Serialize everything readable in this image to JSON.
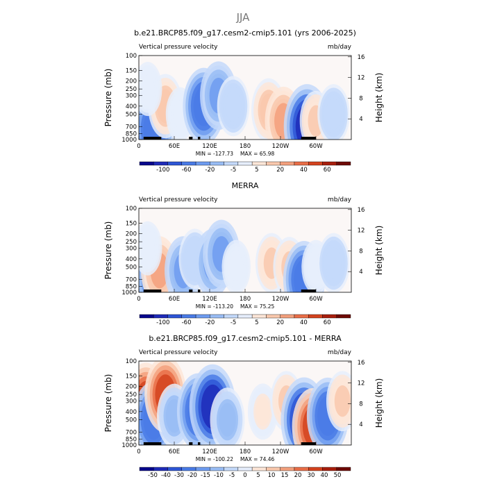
{
  "main_title": "JJA",
  "chart_data": [
    {
      "type": "heatmap",
      "title": "b.e21.BRCP85.f09_g17.cesm2-cmip5.101 (yrs 2006-2025)",
      "variable_label": "Vertical pressure velocity",
      "units": "mb/day",
      "ylabel": "Pressure (mb)",
      "ylabel_right": "Height (km)",
      "y_ticks": [
        "100",
        "150",
        "200",
        "250",
        "300",
        "400",
        "500",
        "700",
        "850",
        "1000"
      ],
      "y_right_ticks": [
        "16",
        "12",
        "8",
        "4"
      ],
      "x_ticks": [
        "0",
        "60E",
        "120E",
        "180",
        "120W",
        "60W"
      ],
      "min_label": "MIN = -127.73",
      "max_label": "MAX = 65.98",
      "colorbar_ticks": [
        "-100",
        "-60",
        "-20",
        "-5",
        "5",
        "20",
        "40",
        "60"
      ],
      "features": [
        {
          "lon": 25,
          "p": 750,
          "v": -60
        },
        {
          "lon": 45,
          "p": 400,
          "v": 30
        },
        {
          "lon": 70,
          "p": 500,
          "v": -5
        },
        {
          "lon": 110,
          "p": 400,
          "v": -60
        },
        {
          "lon": 135,
          "p": 300,
          "v": -40
        },
        {
          "lon": 160,
          "p": 400,
          "v": -20
        },
        {
          "lon": 220,
          "p": 450,
          "v": 30
        },
        {
          "lon": 245,
          "p": 600,
          "v": 40
        },
        {
          "lon": 285,
          "p": 700,
          "v": -80
        },
        {
          "lon": 300,
          "p": 600,
          "v": 20
        },
        {
          "lon": 330,
          "p": 500,
          "v": -20
        },
        {
          "lon": 15,
          "p": 250,
          "v": 5
        }
      ]
    },
    {
      "type": "heatmap",
      "title": "MERRA",
      "variable_label": "Vertical pressure velocity",
      "units": "mb/day",
      "ylabel": "Pressure (mb)",
      "ylabel_right": "Height (km)",
      "y_ticks": [
        "100",
        "150",
        "200",
        "250",
        "300",
        "400",
        "500",
        "700",
        "850",
        "1000"
      ],
      "y_right_ticks": [
        "16",
        "12",
        "8",
        "4"
      ],
      "x_ticks": [
        "0",
        "60E",
        "120E",
        "180",
        "120W",
        "60W"
      ],
      "min_label": "MIN = -113.20",
      "max_label": "MAX = 75.25",
      "colorbar_ticks": [
        "-100",
        "-60",
        "-20",
        "-5",
        "5",
        "20",
        "40",
        "60"
      ],
      "features": [
        {
          "lon": 20,
          "p": 750,
          "v": -40
        },
        {
          "lon": 35,
          "p": 550,
          "v": 40
        },
        {
          "lon": 75,
          "p": 550,
          "v": -40
        },
        {
          "lon": 95,
          "p": 400,
          "v": -20
        },
        {
          "lon": 125,
          "p": 450,
          "v": -40
        },
        {
          "lon": 140,
          "p": 350,
          "v": -40
        },
        {
          "lon": 165,
          "p": 500,
          "v": -5
        },
        {
          "lon": 225,
          "p": 450,
          "v": 20
        },
        {
          "lon": 255,
          "p": 500,
          "v": 20
        },
        {
          "lon": 280,
          "p": 700,
          "v": -60
        },
        {
          "lon": 300,
          "p": 500,
          "v": 5
        },
        {
          "lon": 330,
          "p": 450,
          "v": -20
        },
        {
          "lon": 15,
          "p": 300,
          "v": -5
        }
      ]
    },
    {
      "type": "heatmap",
      "title": "b.e21.BRCP85.f09_g17.cesm2-cmip5.101 - MERRA",
      "variable_label": "Vertical pressure velocity",
      "units": "mb/day",
      "ylabel": "Pressure (mb)",
      "ylabel_right": "Height (km)",
      "y_ticks": [
        "100",
        "150",
        "200",
        "250",
        "300",
        "400",
        "500",
        "700",
        "850",
        "1000"
      ],
      "y_right_ticks": [
        "16",
        "12",
        "8",
        "4"
      ],
      "x_ticks": [
        "0",
        "60E",
        "120E",
        "180",
        "120W",
        "60W"
      ],
      "min_label": "MIN = -100.22",
      "max_label": "MAX = 74.46",
      "colorbar_ticks": [
        "-50",
        "-40",
        "-30",
        "-20",
        "-15",
        "-10",
        "-5",
        "0",
        "5",
        "10",
        "15",
        "20",
        "30",
        "40",
        "50"
      ],
      "features": [
        {
          "lon": 12,
          "p": 300,
          "v": 30
        },
        {
          "lon": 25,
          "p": 500,
          "v": -30
        },
        {
          "lon": 45,
          "p": 250,
          "v": 30
        },
        {
          "lon": 60,
          "p": 450,
          "v": -15
        },
        {
          "lon": 100,
          "p": 400,
          "v": -30
        },
        {
          "lon": 125,
          "p": 350,
          "v": -40
        },
        {
          "lon": 150,
          "p": 500,
          "v": -15
        },
        {
          "lon": 210,
          "p": 400,
          "v": 5
        },
        {
          "lon": 250,
          "p": 300,
          "v": 10
        },
        {
          "lon": 280,
          "p": 500,
          "v": -40
        },
        {
          "lon": 295,
          "p": 600,
          "v": 30
        },
        {
          "lon": 320,
          "p": 450,
          "v": -30
        },
        {
          "lon": 345,
          "p": 300,
          "v": 10
        }
      ]
    }
  ],
  "colors": {
    "palette": [
      "#08088c",
      "#1f2bb8",
      "#2e56d6",
      "#4a7be6",
      "#6e9cf0",
      "#99bdf5",
      "#c4d9fa",
      "#e6eefc",
      "#fde6d8",
      "#f9c8ad",
      "#f3a07d",
      "#e96e48",
      "#d4431f",
      "#a81f0d",
      "#6e0a04"
    ]
  }
}
